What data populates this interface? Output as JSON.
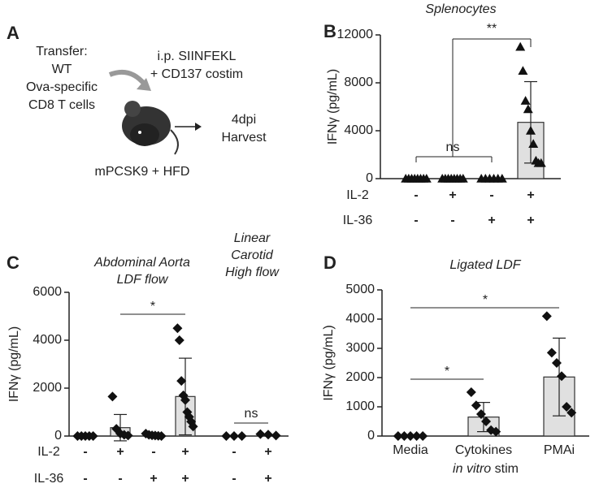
{
  "diagram": {
    "panel": "A",
    "texts": [
      "Transfer:",
      "WT",
      "Ova-specific",
      "CD8 T cells",
      "i.p. SIINFEKL",
      "+ CD137 costim",
      "4dpi",
      "Harvest",
      "mPCSK9 + HFD"
    ]
  },
  "chart_data": [
    {
      "type": "bar",
      "panel": "B",
      "titles": [
        [
          "Splenocytes"
        ]
      ],
      "ylabel": "IFNγ (pg/mL)",
      "categories": [
        null,
        null,
        null,
        null
      ],
      "values": [
        0,
        0,
        0,
        4700
      ],
      "errors": [
        0,
        0,
        0,
        3400
      ],
      "points": [
        [
          0,
          0,
          0,
          0,
          0,
          0,
          0,
          0
        ],
        [
          0,
          0,
          0,
          0,
          0,
          0,
          0,
          0
        ],
        [
          0,
          0,
          0,
          0,
          0,
          0
        ],
        [
          11000,
          9000,
          6500,
          5800,
          4000,
          2900,
          1500,
          1300,
          1300
        ]
      ],
      "marker": "triangle",
      "signs": {
        "labels": [
          "IL-2",
          "IL-36"
        ],
        "rows": [
          [
            "-",
            "+",
            "-",
            "+"
          ],
          [
            "-",
            "-",
            "+",
            "+"
          ]
        ]
      },
      "annotations": [
        "ns",
        "**"
      ],
      "ylim": [
        0,
        12000
      ],
      "yticks": [
        0,
        4000,
        8000,
        12000
      ]
    },
    {
      "type": "bar",
      "panel": "C",
      "titles": [
        [
          "Abdominal Aorta",
          "LDF flow"
        ],
        [
          "Linear",
          "Carotid",
          "High flow"
        ]
      ],
      "ylabel": "IFNγ (pg/mL)",
      "categories": [
        null,
        null,
        null,
        null,
        null,
        null
      ],
      "values": [
        0,
        350,
        50,
        1650,
        0,
        50
      ],
      "errors": [
        0,
        550,
        50,
        1600,
        0,
        0
      ],
      "points": [
        [
          0,
          0,
          0,
          0,
          0
        ],
        [
          1650,
          300,
          100,
          50,
          20
        ],
        [
          100,
          50,
          30,
          20,
          10,
          0
        ],
        [
          4500,
          4000,
          2300,
          1700,
          1500,
          1000,
          800,
          600,
          400
        ],
        [
          0,
          0,
          0
        ],
        [
          80,
          60,
          20
        ]
      ],
      "marker": "diamond",
      "signs": {
        "labels": [
          "IL-2",
          "IL-36"
        ],
        "rows": [
          [
            "-",
            "+",
            "-",
            "+",
            "-",
            "+"
          ],
          [
            "-",
            "-",
            "+",
            "+",
            "-",
            "+"
          ]
        ]
      },
      "annotations": [
        "*",
        "ns"
      ],
      "ylim": [
        0,
        6000
      ],
      "yticks": [
        0,
        2000,
        4000,
        6000
      ]
    },
    {
      "type": "bar",
      "panel": "D",
      "titles": [
        [
          "Ligated LDF"
        ]
      ],
      "ylabel": "IFNγ (pg/mL)",
      "categories": [
        "Media",
        "Cytokines",
        "PMAi"
      ],
      "xlabel": {
        "italic": "in vitro",
        "normal": "stim"
      },
      "values": [
        0,
        650,
        2020
      ],
      "errors": [
        0,
        500,
        1330
      ],
      "points": [
        [
          0,
          0,
          0,
          0,
          0
        ],
        [
          1500,
          1050,
          750,
          500,
          200,
          150
        ],
        [
          4100,
          2850,
          2500,
          2050,
          1000,
          800
        ]
      ],
      "marker": "diamond",
      "annotations": [
        "*",
        "*"
      ],
      "ylim": [
        0,
        5000
      ],
      "yticks": [
        0,
        1000,
        2000,
        3000,
        4000,
        5000
      ]
    }
  ]
}
